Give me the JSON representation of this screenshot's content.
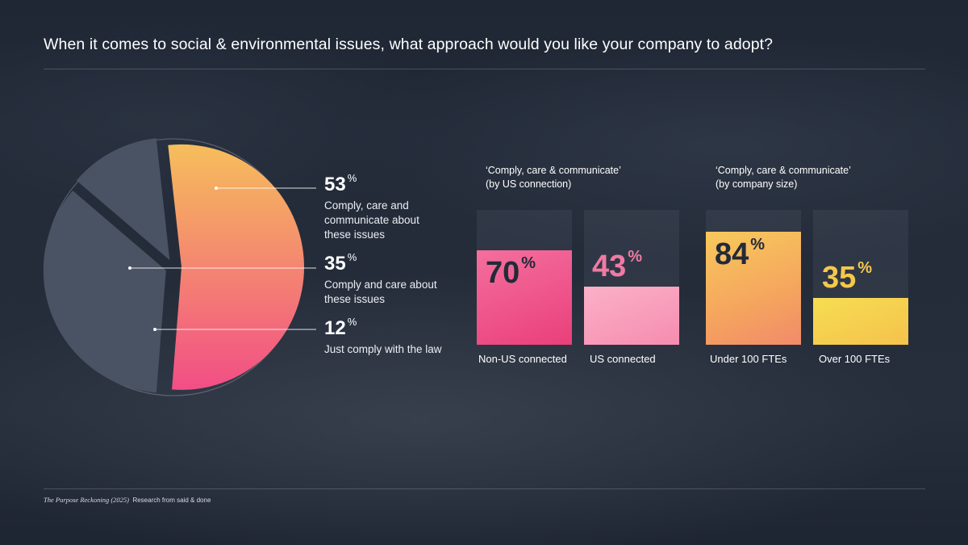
{
  "title": "When it comes to social & environmental issues, what approach would you like your company to adopt?",
  "footer": {
    "source": "The Purpose Reckoning (2025)",
    "credit": "Research from said & done"
  },
  "colors": {
    "pink_dark": "#ee4a82",
    "pink_light": "#fa9dbc",
    "orange": "#f6b658",
    "yellow": "#f5ce4a",
    "slate": "#4a5363",
    "navy_text": "#232a38"
  },
  "chart_data": [
    {
      "type": "pie",
      "title": "When it comes to social & environmental issues, what approach would you like your company to adopt?",
      "slices": [
        {
          "value": 53,
          "unit": "%",
          "label": "Comply, care and communicate about these issues"
        },
        {
          "value": 35,
          "unit": "%",
          "label": "Comply and care about these issues"
        },
        {
          "value": 12,
          "unit": "%",
          "label": "Just comply with the law"
        }
      ]
    },
    {
      "type": "bar",
      "title": "‘Comply, care & communicate’ (by US connection)",
      "title_lines": [
        "‘Comply, care & communicate’",
        "(by US connection)"
      ],
      "categories": [
        "Non-US connected",
        "US connected"
      ],
      "values": [
        70,
        43
      ],
      "unit": "%",
      "ylim": [
        0,
        100
      ]
    },
    {
      "type": "bar",
      "title": "‘Comply, care & communicate’ (by company size)",
      "title_lines": [
        "‘Comply, care & communicate’",
        "(by company size)"
      ],
      "categories": [
        "Under 100 FTEs",
        "Over 100 FTEs"
      ],
      "values": [
        84,
        35
      ],
      "unit": "%",
      "ylim": [
        0,
        100
      ]
    }
  ]
}
